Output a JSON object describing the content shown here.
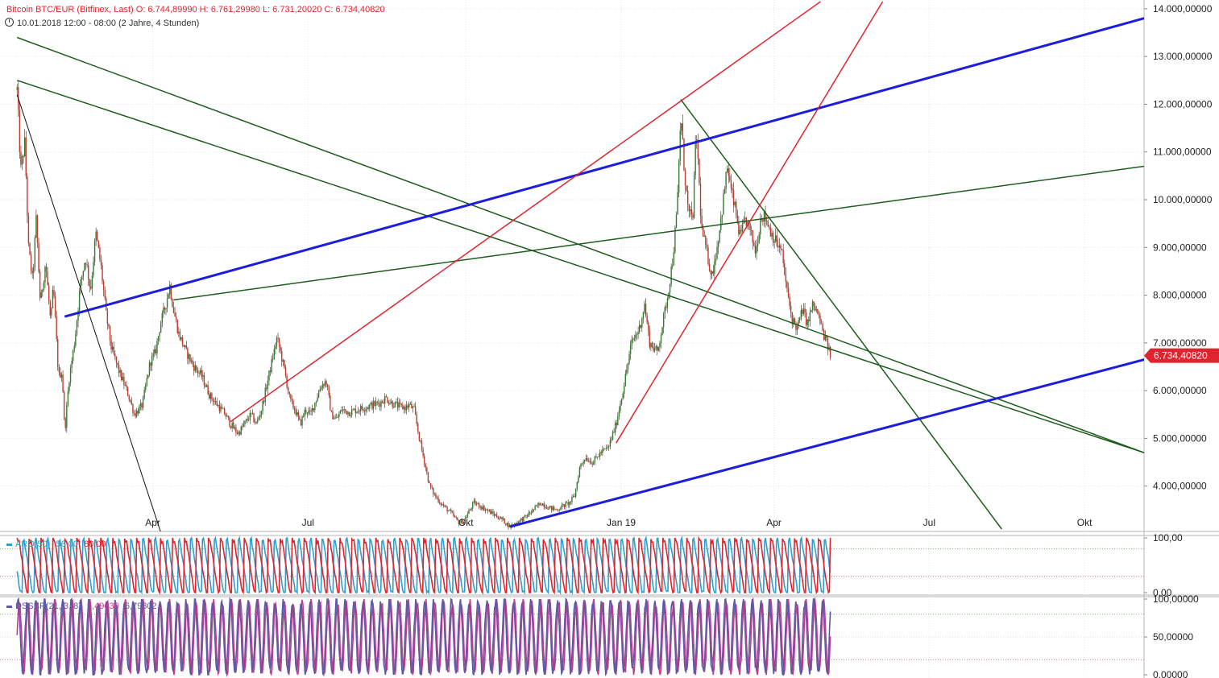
{
  "header": {
    "title_line": "Bitcoin BTC/EUR (Bitfinex, Last)  O: 6.744,89990  H: 6.761,29980  L: 6.731,20020  C: 6.734,40820",
    "date_line": "10.01.2018 12:00 - 08:00  (2 Jahre, 4 Stunden)"
  },
  "chart_data": [
    {
      "type": "candlestick",
      "title": "Bitcoin BTC/EUR (Bitfinex, Last)",
      "ohlc_last": {
        "open": 6744.8999,
        "high": 6761.2998,
        "low": 6731.2002,
        "close": 6734.4082
      },
      "current_price_label": "6.734,40820",
      "x_tick_labels": [
        "Apr",
        "Jul",
        "Okt",
        "Jan 19",
        "Apr",
        "Jul",
        "Okt"
      ],
      "y_tick_labels": [
        "4.000,00000",
        "5.000,00000",
        "6.000,00000",
        "7.000,00000",
        "8.000,00000",
        "9.000,00000",
        "10.000,00000",
        "11.000,00000",
        "12.000,00000",
        "13.000,00000",
        "14.000,00000"
      ],
      "ylim": [
        3050,
        14150
      ],
      "x_range_months": [
        0,
        22.1
      ],
      "price_path": [
        [
          0.33,
          12300
        ],
        [
          0.4,
          10600
        ],
        [
          0.48,
          11200
        ],
        [
          0.55,
          9000
        ],
        [
          0.63,
          8300
        ],
        [
          0.7,
          9600
        ],
        [
          0.78,
          7800
        ],
        [
          0.88,
          8700
        ],
        [
          0.98,
          7400
        ],
        [
          1.03,
          8200
        ],
        [
          1.13,
          6300
        ],
        [
          1.2,
          6400
        ],
        [
          1.25,
          5100
        ],
        [
          1.33,
          6200
        ],
        [
          1.45,
          7100
        ],
        [
          1.55,
          8200
        ],
        [
          1.65,
          8800
        ],
        [
          1.75,
          8100
        ],
        [
          1.85,
          9300
        ],
        [
          1.95,
          8600
        ],
        [
          2.05,
          7600
        ],
        [
          2.15,
          6900
        ],
        [
          2.3,
          6400
        ],
        [
          2.45,
          6000
        ],
        [
          2.6,
          5500
        ],
        [
          2.75,
          5700
        ],
        [
          2.9,
          6600
        ],
        [
          3.0,
          6800
        ],
        [
          3.1,
          7400
        ],
        [
          3.2,
          7800
        ],
        [
          3.28,
          8200
        ],
        [
          3.35,
          7700
        ],
        [
          3.45,
          7200
        ],
        [
          3.6,
          6800
        ],
        [
          3.75,
          6500
        ],
        [
          3.9,
          6300
        ],
        [
          4.05,
          5900
        ],
        [
          4.2,
          5700
        ],
        [
          4.35,
          5500
        ],
        [
          4.45,
          5300
        ],
        [
          4.6,
          5100
        ],
        [
          4.75,
          5350
        ],
        [
          4.85,
          5500
        ],
        [
          4.95,
          5300
        ],
        [
          5.05,
          5600
        ],
        [
          5.15,
          6100
        ],
        [
          5.25,
          6600
        ],
        [
          5.35,
          7100
        ],
        [
          5.42,
          6800
        ],
        [
          5.5,
          6400
        ],
        [
          5.6,
          5800
        ],
        [
          5.7,
          5600
        ],
        [
          5.8,
          5300
        ],
        [
          5.9,
          5600
        ],
        [
          6.0,
          5500
        ],
        [
          6.1,
          5800
        ],
        [
          6.2,
          6100
        ],
        [
          6.3,
          6200
        ],
        [
          6.4,
          5500
        ],
        [
          6.5,
          5400
        ],
        [
          6.6,
          5600
        ],
        [
          6.75,
          5550
        ],
        [
          6.9,
          5600
        ],
        [
          7.05,
          5650
        ],
        [
          7.2,
          5700
        ],
        [
          7.35,
          5750
        ],
        [
          7.45,
          5850
        ],
        [
          7.55,
          5750
        ],
        [
          7.65,
          5700
        ],
        [
          7.75,
          5650
        ],
        [
          7.85,
          5650
        ],
        [
          7.9,
          5700
        ],
        [
          8.0,
          5600
        ],
        [
          8.1,
          5000
        ],
        [
          8.2,
          4500
        ],
        [
          8.3,
          4000
        ],
        [
          8.4,
          3800
        ],
        [
          8.55,
          3600
        ],
        [
          8.7,
          3450
        ],
        [
          8.85,
          3250
        ],
        [
          8.95,
          3250
        ],
        [
          9.05,
          3450
        ],
        [
          9.15,
          3650
        ],
        [
          9.25,
          3600
        ],
        [
          9.4,
          3500
        ],
        [
          9.55,
          3400
        ],
        [
          9.7,
          3300
        ],
        [
          9.85,
          3150
        ],
        [
          10.0,
          3250
        ],
        [
          10.15,
          3350
        ],
        [
          10.3,
          3500
        ],
        [
          10.45,
          3650
        ],
        [
          10.6,
          3550
        ],
        [
          10.75,
          3500
        ],
        [
          10.9,
          3600
        ],
        [
          11.0,
          3650
        ],
        [
          11.1,
          3800
        ],
        [
          11.2,
          4400
        ],
        [
          11.3,
          4600
        ],
        [
          11.45,
          4500
        ],
        [
          11.6,
          4700
        ],
        [
          11.75,
          4800
        ],
        [
          11.9,
          5300
        ],
        [
          12.05,
          6100
        ],
        [
          12.2,
          7000
        ],
        [
          12.35,
          7300
        ],
        [
          12.45,
          7800
        ],
        [
          12.55,
          7000
        ],
        [
          12.7,
          6800
        ],
        [
          12.8,
          7400
        ],
        [
          12.9,
          8000
        ],
        [
          13.0,
          8800
        ],
        [
          13.08,
          9800
        ],
        [
          13.15,
          11800
        ],
        [
          13.22,
          10600
        ],
        [
          13.3,
          9700
        ],
        [
          13.38,
          9600
        ],
        [
          13.45,
          11500
        ],
        [
          13.55,
          9400
        ],
        [
          13.65,
          8900
        ],
        [
          13.75,
          8400
        ],
        [
          13.85,
          9000
        ],
        [
          13.95,
          9800
        ],
        [
          14.05,
          10700
        ],
        [
          14.12,
          10200
        ],
        [
          14.2,
          9800
        ],
        [
          14.3,
          9200
        ],
        [
          14.4,
          9600
        ],
        [
          14.5,
          9300
        ],
        [
          14.6,
          8900
        ],
        [
          14.7,
          9700
        ],
        [
          14.8,
          9600
        ],
        [
          14.9,
          9300
        ],
        [
          15.0,
          9100
        ],
        [
          15.1,
          8900
        ],
        [
          15.2,
          8100
        ],
        [
          15.3,
          7500
        ],
        [
          15.4,
          7300
        ],
        [
          15.5,
          7700
        ],
        [
          15.6,
          7400
        ],
        [
          15.7,
          7800
        ],
        [
          15.8,
          7600
        ],
        [
          15.9,
          7200
        ],
        [
          16.0,
          6900
        ],
        [
          16.04,
          6734.4
        ]
      ],
      "trend_lines": [
        {
          "color": "#1d5c1d",
          "width": 1.5,
          "points": [
            [
              0.33,
              13400
            ],
            [
              0.33,
              13400
            ],
            [
              22.1,
              4700
            ]
          ]
        },
        {
          "color": "#1d5c1d",
          "width": 1.5,
          "points": [
            [
              0.33,
              12500
            ],
            [
              0.33,
              12500
            ],
            [
              22.1,
              4700
            ]
          ]
        },
        {
          "color": "#1d5c1d",
          "width": 1.5,
          "points": [
            [
              3.35,
              7900
            ],
            [
              22.1,
              10700
            ]
          ]
        },
        {
          "color": "#1d5c1d",
          "width": 1.5,
          "points": [
            [
              13.15,
              12100
            ],
            [
              19.35,
              3100
            ]
          ]
        },
        {
          "color": "#1d1dde",
          "width": 3,
          "points": [
            [
              1.25,
              7550
            ],
            [
              22.1,
              13800
            ]
          ]
        },
        {
          "color": "#1d1dde",
          "width": 3,
          "points": [
            [
              9.85,
              3150
            ],
            [
              22.1,
              6650
            ]
          ]
        },
        {
          "color": "#e0242f",
          "width": 1.5,
          "points": [
            [
              4.45,
              5350
            ],
            [
              15.85,
              14150
            ]
          ]
        },
        {
          "color": "#e0242f",
          "width": 1.5,
          "points": [
            [
              11.9,
              4900
            ],
            [
              17.05,
              14150
            ]
          ]
        },
        {
          "color": "#111111",
          "width": 1,
          "points": [
            [
              0.33,
              12200
            ],
            [
              3.1,
              3050
            ]
          ]
        }
      ]
    },
    {
      "type": "line",
      "title": "ARO(50)",
      "legend_values": [
        "56,00",
        "80,00"
      ],
      "y_tick_labels": [
        "100,00",
        "0,00"
      ],
      "ylim": [
        0,
        100
      ],
      "reference_lines": [
        80,
        30
      ],
      "series": [
        {
          "name": "56,00",
          "color": "#2e9fce",
          "cycles": 68,
          "phase": 0.55
        },
        {
          "name": "80,00",
          "color": "#e0242f",
          "cycles": 68,
          "phase": 0.0
        }
      ]
    },
    {
      "type": "line",
      "title": "DSSBR(21, 3, 8)",
      "legend_values": [
        "5,49630",
        "6,79802"
      ],
      "y_tick_labels": [
        "100,00000",
        "50,00000",
        "0,00000"
      ],
      "ylim": [
        0,
        100
      ],
      "reference_lines": [
        80,
        20
      ],
      "series": [
        {
          "name": "5,49630",
          "color": "#c93a8a",
          "cycles": 92,
          "phase": 0.0
        },
        {
          "name": "6,79802",
          "color": "#5d5aa3",
          "cycles": 92,
          "phase": 0.12
        }
      ]
    }
  ]
}
